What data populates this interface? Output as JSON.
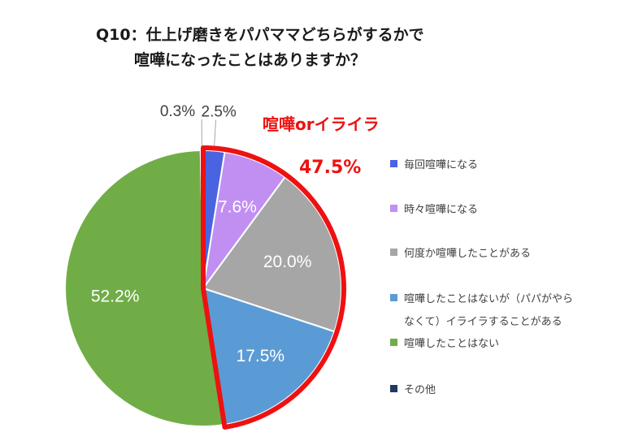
{
  "chart_data": {
    "type": "pie",
    "title_lines": [
      "Q10：仕上げ磨きをパパママどちらがするかで",
      "喧嘩になったことはありますか？"
    ],
    "slices": [
      {
        "label": "毎回喧嘩になる",
        "value": 2.5,
        "display": "2.5%",
        "color": "#4a63e0"
      },
      {
        "label": "時々喧嘩になる",
        "value": 7.6,
        "display": "7.6%",
        "color": "#c18ff2"
      },
      {
        "label": "何度か喧嘩したことがある",
        "value": 20.0,
        "display": "20.0%",
        "color": "#a6a6a6"
      },
      {
        "label": "喧嘩したことはないが（パパがやらなくて）イライラすることがある",
        "legend_lines": [
          "喧嘩したことはないが（パパがやら",
          "なくて）イライラすることがある"
        ],
        "value": 17.5,
        "display": "17.5%",
        "color": "#5b9bd5"
      },
      {
        "label": "喧嘩したことはない",
        "value": 52.2,
        "display": "52.2%",
        "color": "#70ad47"
      },
      {
        "label": "その他",
        "value": 0.3,
        "display": "0.3%",
        "color": "#1f3864"
      }
    ],
    "callout": {
      "title": "喧嘩orイライラ",
      "value": "47.5%",
      "color": "#ee1111"
    },
    "legend_position": "right"
  }
}
